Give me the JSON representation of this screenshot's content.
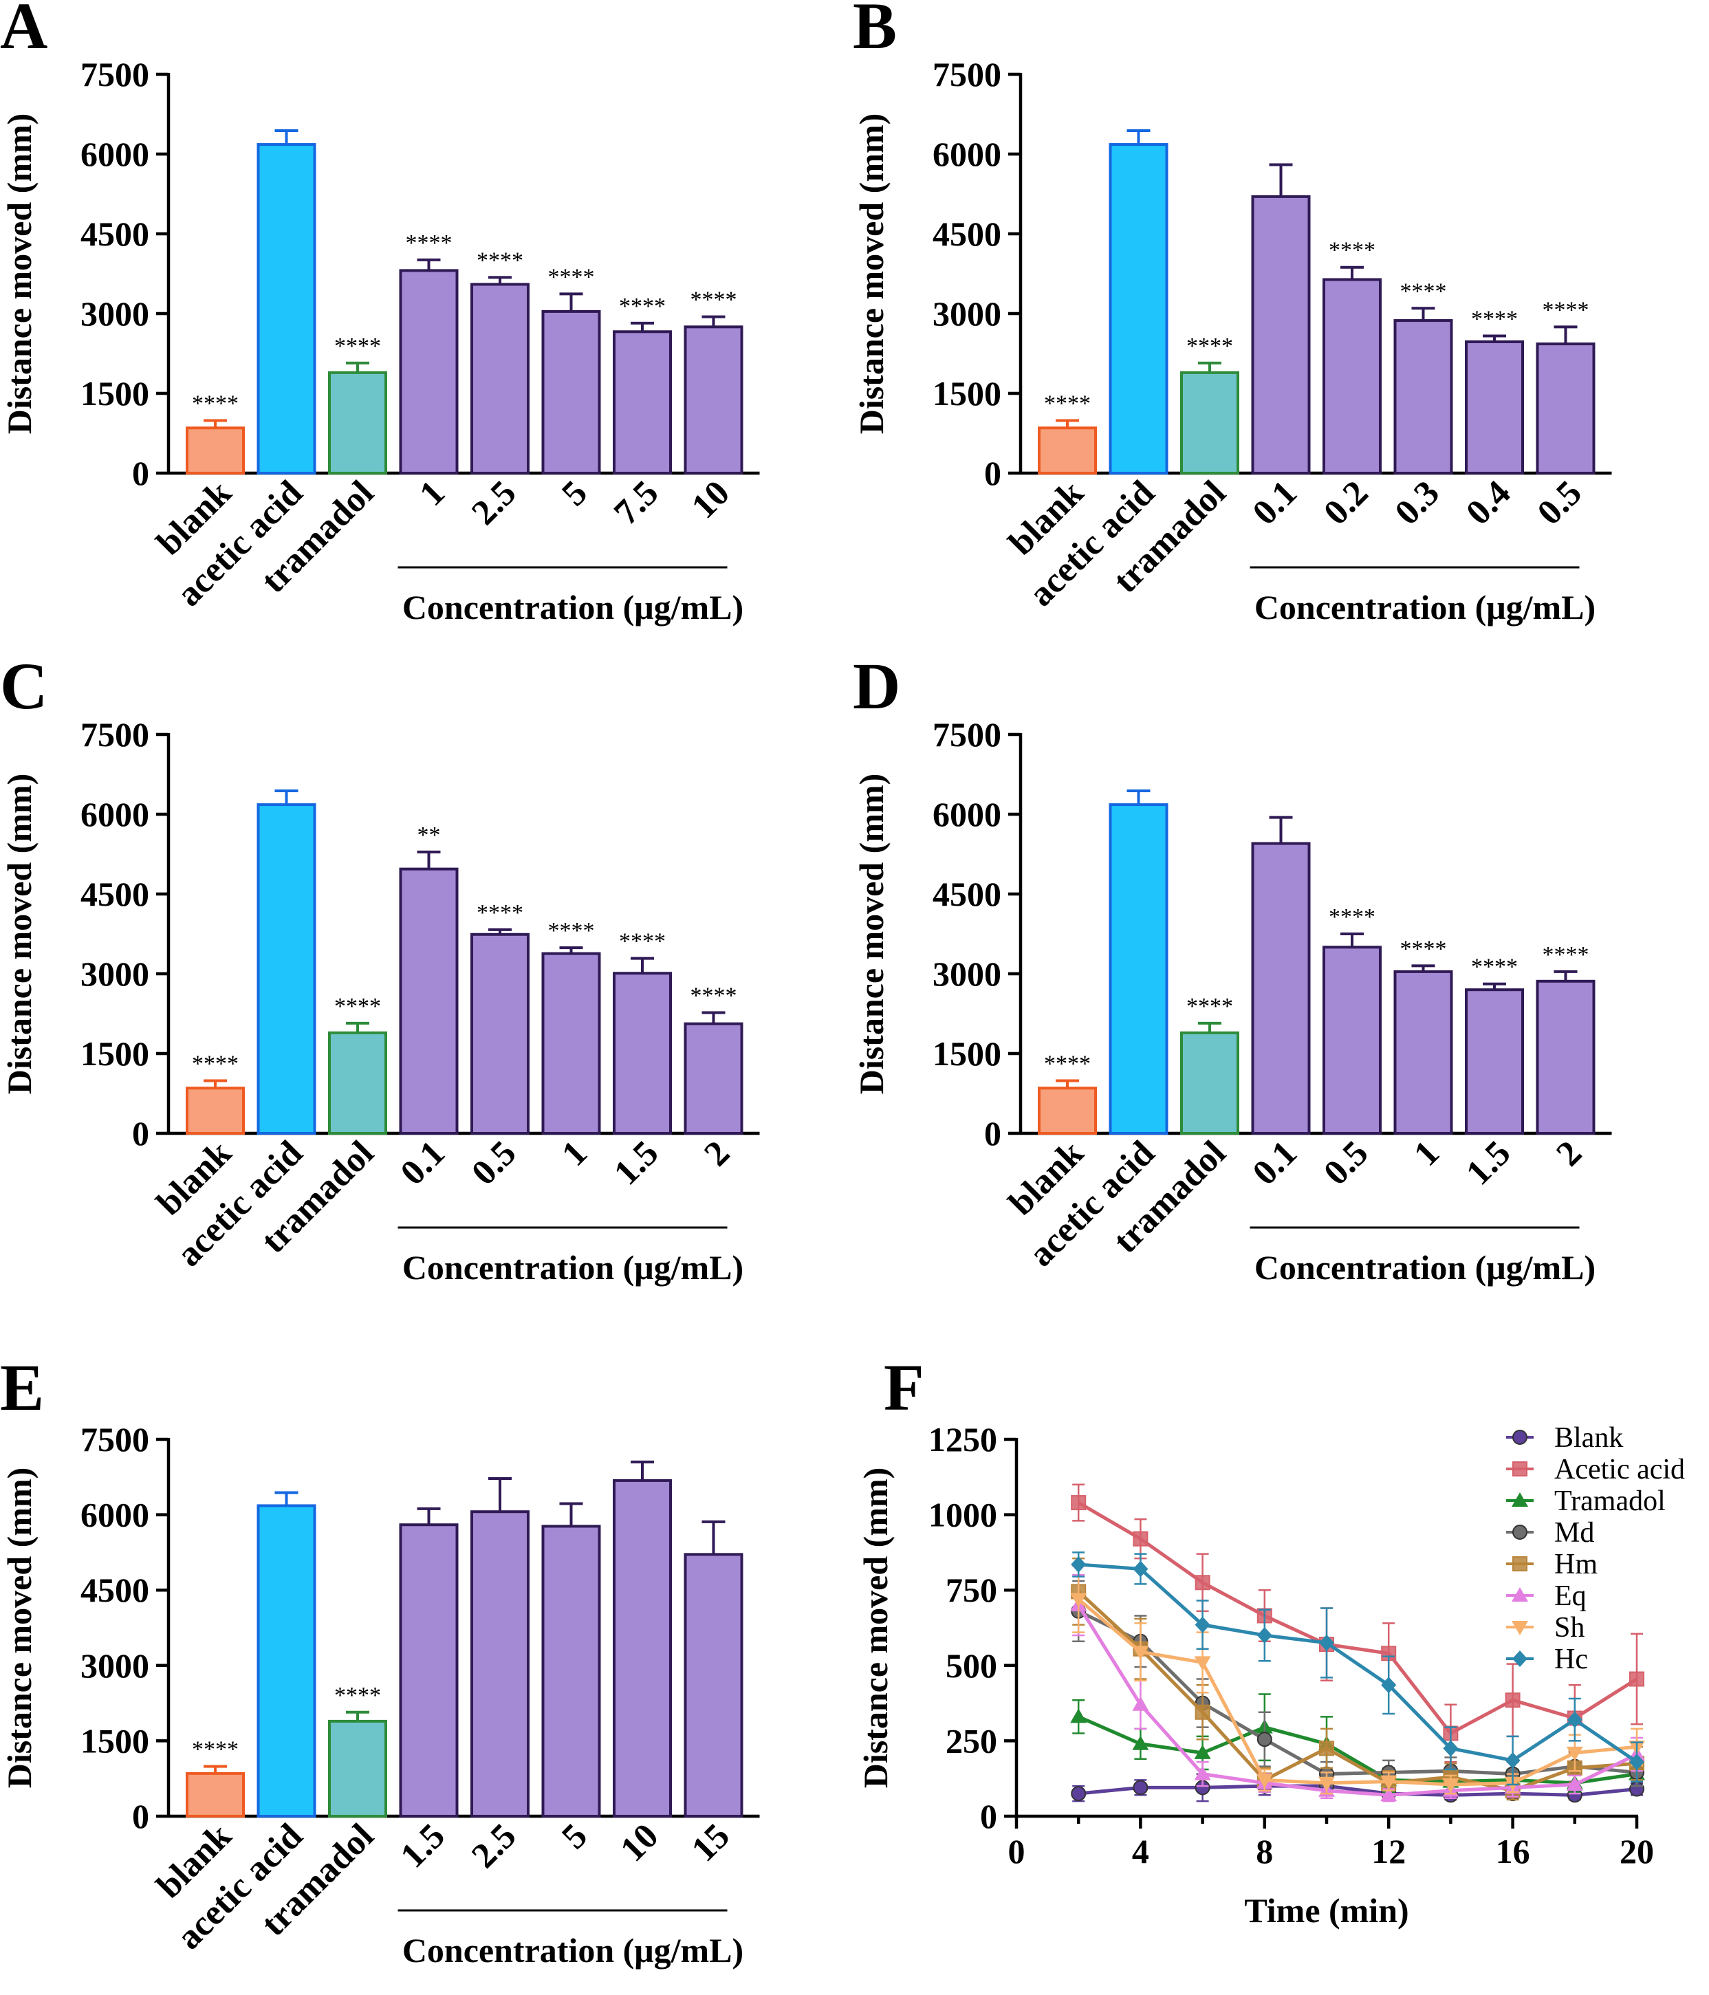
{
  "figure_description_colors": {
    "blank": "#f7a07b",
    "blank_edge": "#ef5a21",
    "acetic": "#1fc4fc",
    "acetic_edge": "#1467e0",
    "tramadol": "#6ec5c9",
    "tramadol_edge": "#2e8b3a",
    "treat": "#a48ad4",
    "treat_edge": "#2f1a55"
  },
  "chart_data": [
    {
      "panel": "A",
      "type": "bar",
      "categories": [
        "blank",
        "acetic acid",
        "tramadol",
        "1",
        "2.5",
        "5",
        "7.5",
        "10"
      ],
      "values": [
        850,
        6180,
        1890,
        3810,
        3550,
        3040,
        2660,
        2750
      ],
      "errors": [
        140,
        260,
        180,
        200,
        130,
        330,
        160,
        190
      ],
      "significance": [
        "****",
        "",
        "****",
        "****",
        "****",
        "****",
        "****",
        "****"
      ],
      "ylabel": "Distance moved (mm)",
      "xlabel": "Concentration (μg/mL)",
      "ylim": [
        0,
        7500
      ],
      "yticks": [
        "0",
        "1500",
        "3000",
        "4500",
        "6000",
        "7500"
      ]
    },
    {
      "panel": "B",
      "type": "bar",
      "categories": [
        "blank",
        "acetic acid",
        "tramadol",
        "0.1",
        "0.2",
        "0.3",
        "0.4",
        "0.5"
      ],
      "values": [
        850,
        6180,
        1890,
        5200,
        3640,
        2870,
        2470,
        2430
      ],
      "errors": [
        140,
        260,
        180,
        600,
        230,
        230,
        110,
        320
      ],
      "significance": [
        "****",
        "",
        "****",
        "",
        "****",
        "****",
        "****",
        "****"
      ],
      "ylabel": "Distance moved (mm)",
      "xlabel": "Concentration (μg/mL)",
      "ylim": [
        0,
        7500
      ],
      "yticks": [
        "0",
        "1500",
        "3000",
        "4500",
        "6000",
        "7500"
      ]
    },
    {
      "panel": "C",
      "type": "bar",
      "categories": [
        "blank",
        "acetic acid",
        "tramadol",
        "0.1",
        "0.5",
        "1",
        "1.5",
        "2"
      ],
      "values": [
        850,
        6180,
        1890,
        4970,
        3740,
        3380,
        3010,
        2060
      ],
      "errors": [
        140,
        260,
        180,
        320,
        90,
        110,
        280,
        210
      ],
      "significance": [
        "****",
        "",
        "****",
        "**",
        "****",
        "****",
        "****",
        "****"
      ],
      "ylabel": "Distance moved (mm)",
      "xlabel": "Concentration (μg/mL)",
      "ylim": [
        0,
        7500
      ],
      "yticks": [
        "0",
        "1500",
        "3000",
        "4500",
        "6000",
        "7500"
      ]
    },
    {
      "panel": "D",
      "type": "bar",
      "categories": [
        "blank",
        "acetic acid",
        "tramadol",
        "0.1",
        "0.5",
        "1",
        "1.5",
        "2"
      ],
      "values": [
        850,
        6180,
        1890,
        5450,
        3500,
        3040,
        2700,
        2860
      ],
      "errors": [
        140,
        260,
        180,
        490,
        250,
        110,
        110,
        180
      ],
      "significance": [
        "****",
        "",
        "****",
        "",
        "****",
        "****",
        "****",
        "****"
      ],
      "ylabel": "Distance moved (mm)",
      "xlabel": "Concentration (μg/mL)",
      "ylim": [
        0,
        7500
      ],
      "yticks": [
        "0",
        "1500",
        "3000",
        "4500",
        "6000",
        "7500"
      ]
    },
    {
      "panel": "E",
      "type": "bar",
      "categories": [
        "blank",
        "acetic acid",
        "tramadol",
        "1.5",
        "2.5",
        "5",
        "10",
        "15"
      ],
      "values": [
        850,
        6180,
        1890,
        5800,
        6060,
        5770,
        6680,
        5210
      ],
      "errors": [
        140,
        260,
        180,
        320,
        660,
        450,
        370,
        650
      ],
      "significance": [
        "****",
        "",
        "****",
        "",
        "",
        "",
        "",
        ""
      ],
      "ylabel": "Distance moved (mm)",
      "xlabel": "Concentration (μg/mL)",
      "ylim": [
        0,
        7500
      ],
      "yticks": [
        "0",
        "1500",
        "3000",
        "4500",
        "6000",
        "7500"
      ]
    },
    {
      "panel": "F",
      "type": "line",
      "x": [
        2,
        4,
        6,
        8,
        10,
        12,
        14,
        16,
        18,
        20
      ],
      "xlabel": "Time (min)",
      "ylabel": "Distance moved (mm)",
      "xlim": [
        0,
        20
      ],
      "ylim": [
        0,
        1250
      ],
      "xticks": [
        "0",
        "4",
        "8",
        "12",
        "16",
        "20"
      ],
      "yticks": [
        "0",
        "250",
        "500",
        "750",
        "1000",
        "1250"
      ],
      "series": [
        {
          "name": "Blank",
          "color": "#5b3f99",
          "marker": "circle",
          "values": [
            75,
            95,
            95,
            100,
            100,
            75,
            70,
            75,
            70,
            90
          ],
          "errors": [
            25,
            25,
            45,
            30,
            25,
            15,
            15,
            15,
            15,
            20
          ]
        },
        {
          "name": "Acetic acid",
          "color": "#d6606b",
          "marker": "square",
          "values": [
            1040,
            920,
            775,
            665,
            570,
            540,
            275,
            385,
            325,
            455
          ],
          "errors": [
            60,
            65,
            95,
            85,
            120,
            100,
            95,
            120,
            110,
            150
          ]
        },
        {
          "name": "Tramadol",
          "color": "#1f8a2e",
          "marker": "triangle",
          "values": [
            330,
            240,
            210,
            295,
            240,
            120,
            115,
            120,
            110,
            140
          ],
          "errors": [
            55,
            50,
            55,
            110,
            90,
            40,
            30,
            35,
            30,
            40
          ]
        },
        {
          "name": "Md",
          "color": "#6e6e6e",
          "marker": "circle",
          "values": [
            680,
            580,
            375,
            255,
            140,
            145,
            150,
            140,
            165,
            145
          ],
          "errors": [
            100,
            85,
            80,
            90,
            40,
            40,
            45,
            40,
            50,
            45
          ]
        },
        {
          "name": "Hm",
          "color": "#b8853a",
          "marker": "square",
          "values": [
            745,
            555,
            345,
            120,
            225,
            110,
            130,
            85,
            160,
            175
          ],
          "errors": [
            110,
            100,
            90,
            40,
            65,
            40,
            45,
            30,
            50,
            55
          ]
        },
        {
          "name": "Eq",
          "color": "#e37fe0",
          "marker": "triangle",
          "values": [
            700,
            370,
            140,
            110,
            85,
            70,
            85,
            95,
            105,
            205
          ],
          "errors": [
            100,
            80,
            40,
            30,
            25,
            20,
            25,
            30,
            30,
            55
          ]
        },
        {
          "name": "Sh",
          "color": "#f7b06b",
          "marker": "triangle-down",
          "values": [
            720,
            545,
            510,
            120,
            110,
            115,
            105,
            110,
            210,
            230
          ],
          "errors": [
            110,
            95,
            100,
            35,
            35,
            30,
            30,
            30,
            60,
            60
          ]
        },
        {
          "name": "Hc",
          "color": "#2c87ad",
          "marker": "diamond",
          "values": [
            835,
            820,
            635,
            600,
            575,
            435,
            225,
            185,
            320,
            180
          ],
          "errors": [
            40,
            50,
            80,
            85,
            115,
            95,
            70,
            80,
            70,
            65
          ]
        }
      ]
    }
  ]
}
